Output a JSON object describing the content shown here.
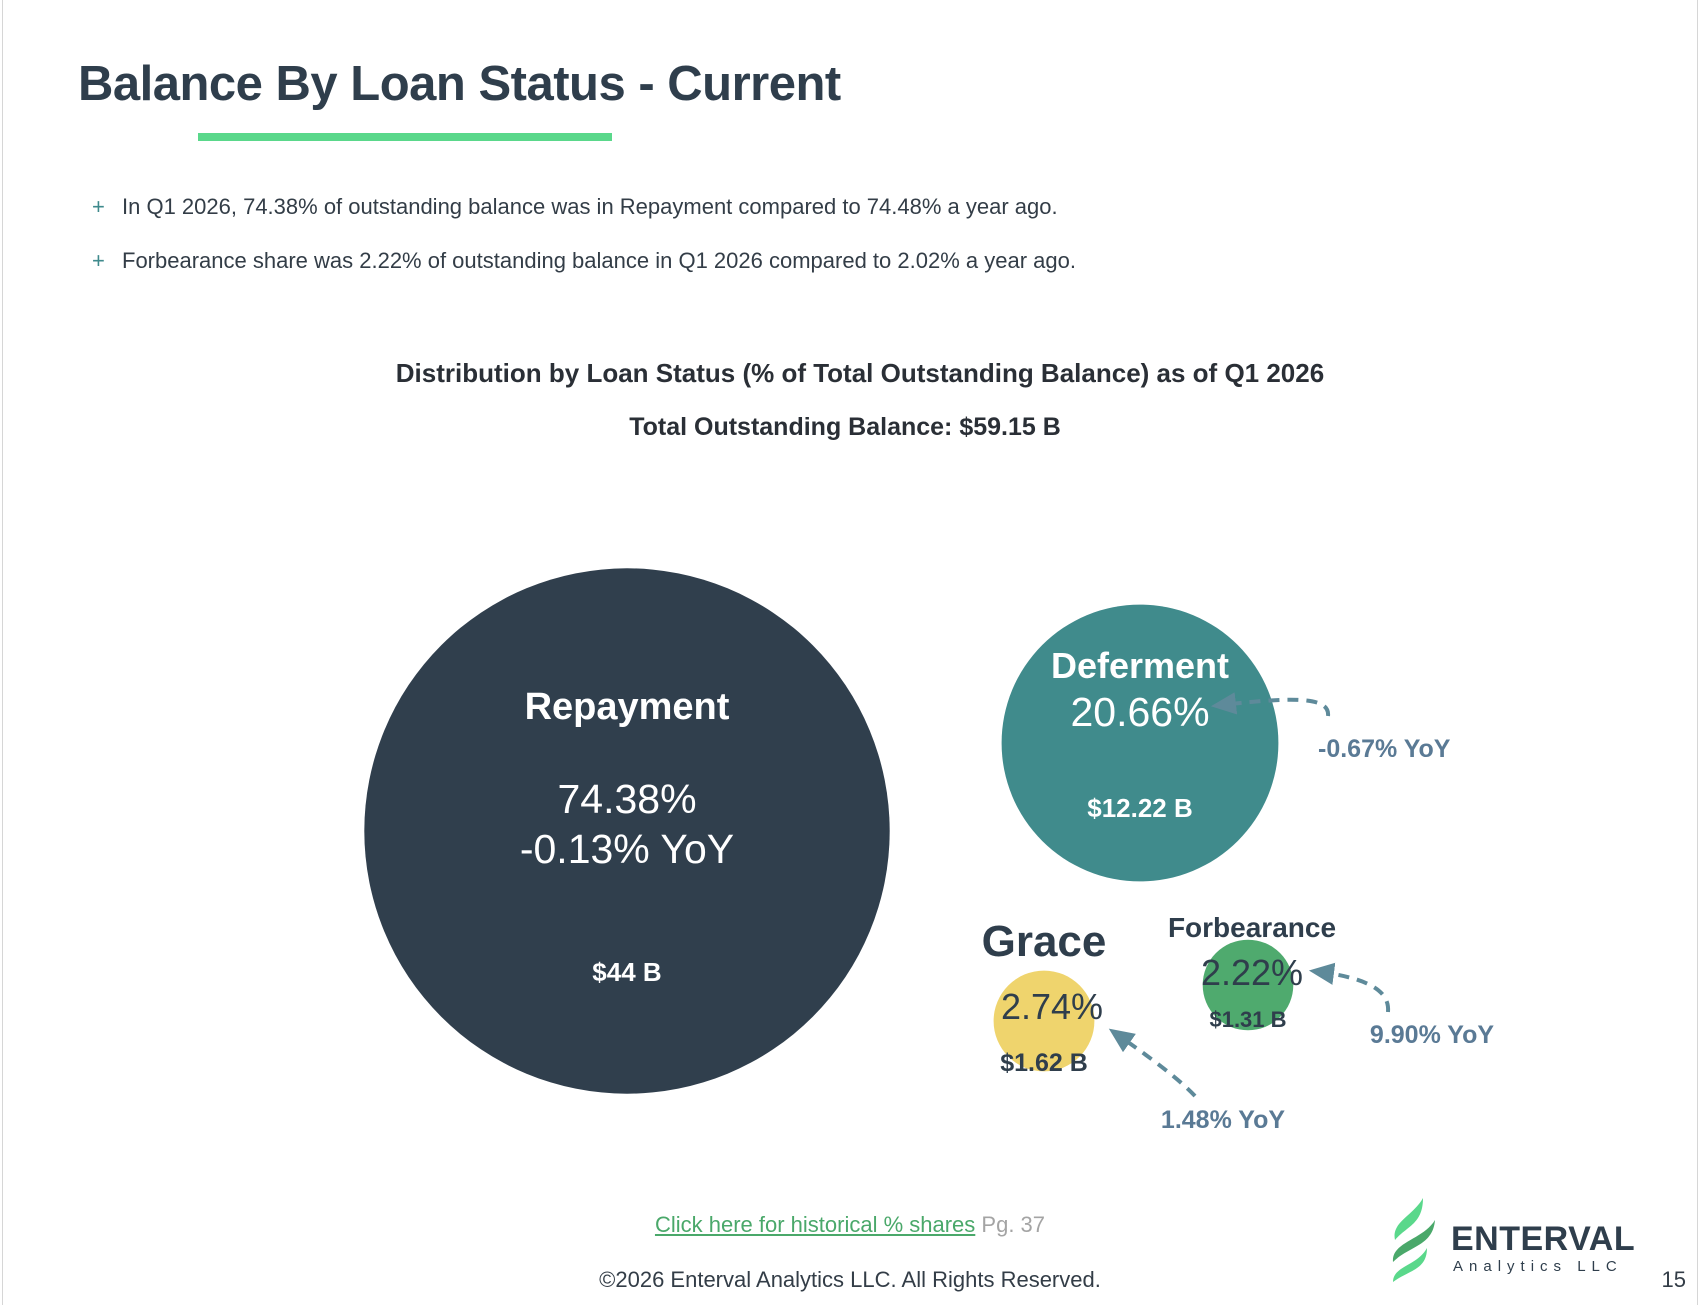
{
  "page": {
    "title": "Balance By Loan Status - Current",
    "bullets": [
      "In Q1 2026, 74.38% of outstanding balance was in Repayment compared to 74.48% a year ago.",
      "Forbearance share was 2.22% of outstanding balance in Q1 2026 compared to 2.02% a year ago."
    ],
    "bullet_marker": "+",
    "historical_link": "Click here for historical % shares",
    "historical_page": "Pg. 37",
    "copyright": "©2026 Enterval Analytics LLC. All Rights Reserved.",
    "page_number": "15",
    "logo": {
      "name": "ENTERVAL",
      "sub": "Analytics LLC",
      "icon": "leaf-swoosh-icon"
    }
  },
  "colors": {
    "title": "#2f3e4c",
    "underline_accent": "#5ad88b",
    "link": "#4aa86a",
    "yoy_text": "#5a7a95"
  },
  "chart_data": {
    "type": "bubble",
    "title": "Distribution by Loan Status (% of Total Outstanding Balance) as of Q1 2026",
    "subtitle": "Total Outstanding Balance: $59.15 B",
    "bubbles": [
      {
        "name": "Repayment",
        "share": "74.38%",
        "share_value": 74.38,
        "yoy": "-0.13% YoY",
        "balance": "$44 B",
        "balance_value": 44,
        "color": "#303f4d",
        "text_color": "#ffffff"
      },
      {
        "name": "Deferment",
        "share": "20.66%",
        "share_value": 20.66,
        "yoy": "-0.67% YoY",
        "balance": "$12.22 B",
        "balance_value": 12.22,
        "color": "#408b8c",
        "text_color": "#ffffff"
      },
      {
        "name": "Grace",
        "share": "2.74%",
        "share_value": 2.74,
        "yoy": "1.48% YoY",
        "balance": "$1.62 B",
        "balance_value": 1.62,
        "color": "#efd46d",
        "text_color": "#2f3e4c"
      },
      {
        "name": "Forbearance",
        "share": "2.22%",
        "share_value": 2.22,
        "yoy": "9.90% YoY",
        "balance": "$1.31 B",
        "balance_value": 1.31,
        "color": "#4faa6e",
        "text_color": "#2f3e4c"
      }
    ]
  }
}
